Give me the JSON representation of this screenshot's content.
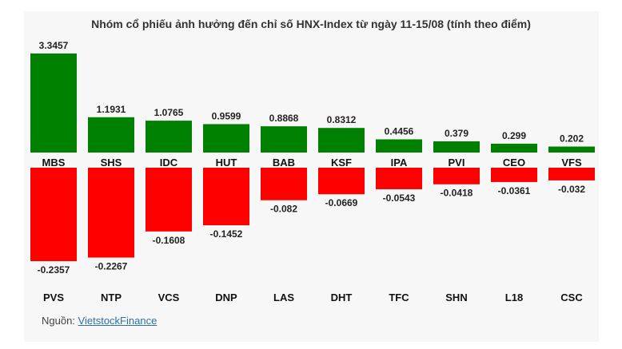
{
  "chart_data": {
    "type": "bar",
    "title": "Nhóm cổ phiếu ảnh hưởng đến chỉ số HNX-Index từ ngày 11-15/08 (tính theo điểm)",
    "positive": {
      "color": "#008000",
      "items": [
        {
          "ticker": "MBS",
          "value": 3.3457,
          "label": "3.3457"
        },
        {
          "ticker": "SHS",
          "value": 1.1931,
          "label": "1.1931"
        },
        {
          "ticker": "IDC",
          "value": 1.0765,
          "label": "1.0765"
        },
        {
          "ticker": "HUT",
          "value": 0.9599,
          "label": "0.9599"
        },
        {
          "ticker": "BAB",
          "value": 0.8868,
          "label": "0.8868"
        },
        {
          "ticker": "KSF",
          "value": 0.8312,
          "label": "0.8312"
        },
        {
          "ticker": "IPA",
          "value": 0.4456,
          "label": "0.4456"
        },
        {
          "ticker": "PVI",
          "value": 0.379,
          "label": "0.379"
        },
        {
          "ticker": "CEO",
          "value": 0.299,
          "label": "0.299"
        },
        {
          "ticker": "VFS",
          "value": 0.202,
          "label": "0.202"
        }
      ]
    },
    "negative": {
      "color": "#ff0000",
      "items": [
        {
          "ticker": "PVS",
          "value": -0.2357,
          "label": "-0.2357"
        },
        {
          "ticker": "NTP",
          "value": -0.2267,
          "label": "-0.2267"
        },
        {
          "ticker": "VCS",
          "value": -0.1608,
          "label": "-0.1608"
        },
        {
          "ticker": "DNP",
          "value": -0.1452,
          "label": "-0.1452"
        },
        {
          "ticker": "LAS",
          "value": -0.082,
          "label": "-0.082"
        },
        {
          "ticker": "DHT",
          "value": -0.0669,
          "label": "-0.0669"
        },
        {
          "ticker": "TFC",
          "value": -0.0543,
          "label": "-0.0543"
        },
        {
          "ticker": "SHN",
          "value": -0.0418,
          "label": "-0.0418"
        },
        {
          "ticker": "L18",
          "value": -0.0361,
          "label": "-0.0361"
        },
        {
          "ticker": "CSC",
          "value": -0.032,
          "label": "-0.032"
        }
      ]
    },
    "grid": false
  },
  "source": {
    "prefix": "Nguồn: ",
    "link_text": "VietstockFinance"
  }
}
